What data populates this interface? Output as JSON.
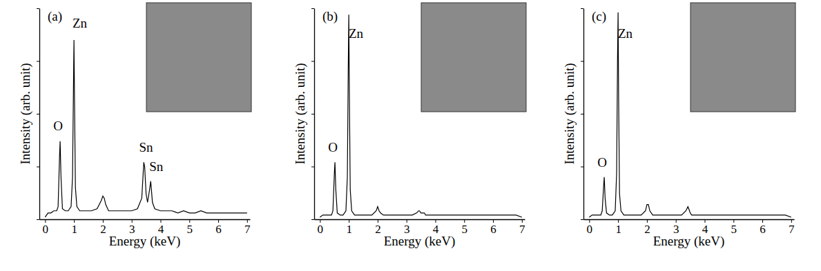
{
  "chart_data": [
    {
      "type": "line",
      "title": "(a)",
      "x_label": "Energy (keV)",
      "y_label": "Intensity (arb. unit)",
      "color": "#000000",
      "tick_labels": "x",
      "xlim": [
        -0.2,
        7.1
      ],
      "xticks": [
        0,
        1,
        2,
        3,
        4,
        5,
        6,
        7
      ],
      "ylim": [
        0,
        100
      ],
      "yticks": [
        0,
        25,
        50,
        75,
        100
      ],
      "x": [
        0,
        0.1,
        0.2,
        0.3,
        0.4,
        0.45,
        0.5,
        0.52,
        0.55,
        0.6,
        0.7,
        0.8,
        0.9,
        0.95,
        0.98,
        1.0,
        1.02,
        1.05,
        1.1,
        1.2,
        1.4,
        1.6,
        1.8,
        1.95,
        2.0,
        2.05,
        2.1,
        2.2,
        2.4,
        2.6,
        2.8,
        3.0,
        3.2,
        3.35,
        3.42,
        3.45,
        3.5,
        3.55,
        3.62,
        3.66,
        3.72,
        3.8,
        4.0,
        4.2,
        4.4,
        4.6,
        4.8,
        5.0,
        5.2,
        5.4,
        5.6,
        5.8,
        6.0,
        6.2,
        6.4,
        6.6,
        6.8,
        7.0
      ],
      "values": [
        1,
        3,
        3,
        4,
        4,
        6,
        30,
        37,
        20,
        5,
        4,
        4,
        6,
        20,
        60,
        85,
        55,
        15,
        6,
        4,
        4,
        4,
        5,
        9,
        11,
        10,
        7,
        4,
        4,
        4,
        4,
        4,
        5,
        10,
        27,
        25,
        12,
        8,
        14,
        18,
        8,
        5,
        4,
        4,
        4,
        3,
        4,
        3,
        3,
        4,
        3,
        3,
        3,
        3,
        3,
        3,
        3,
        3
      ],
      "annotations": [
        {
          "text": "O",
          "x": 0.45,
          "y": 42
        },
        {
          "text": "Zn",
          "x": 1.2,
          "y": 91
        },
        {
          "text": "Sn",
          "x": 3.5,
          "y": 32
        },
        {
          "text": "Sn",
          "x": 3.85,
          "y": 23
        }
      ]
    },
    {
      "type": "line",
      "title": "(b)",
      "x_label": "Energy (keV)",
      "y_label": "Intensity (arb. unit)",
      "color": "#000000",
      "tick_labels": "x",
      "xlim": [
        -0.2,
        7.1
      ],
      "xticks": [
        0,
        1,
        2,
        3,
        4,
        5,
        6,
        7
      ],
      "ylim": [
        0,
        100
      ],
      "yticks": [
        0,
        25,
        50,
        75,
        100
      ],
      "x": [
        0,
        0.1,
        0.2,
        0.3,
        0.4,
        0.45,
        0.5,
        0.52,
        0.55,
        0.6,
        0.7,
        0.8,
        0.9,
        0.95,
        0.98,
        1.0,
        1.02,
        1.05,
        1.1,
        1.2,
        1.4,
        1.6,
        1.8,
        1.95,
        2.0,
        2.05,
        2.1,
        2.2,
        2.4,
        2.6,
        2.8,
        3.0,
        3.2,
        3.35,
        3.42,
        3.45,
        3.5,
        3.55,
        3.62,
        3.66,
        3.72,
        3.8,
        4.0,
        4.2,
        4.4,
        4.6,
        4.8,
        5.0,
        5.2,
        5.4,
        5.6,
        5.8,
        6.0,
        6.2,
        6.4,
        6.6,
        6.8,
        7.0
      ],
      "values": [
        1,
        2,
        2,
        2,
        2,
        4,
        22,
        27,
        14,
        3,
        2,
        2,
        4,
        20,
        70,
        97,
        60,
        14,
        4,
        2,
        2,
        2,
        2,
        4,
        6,
        4,
        3,
        2,
        2,
        2,
        2,
        2,
        2,
        3,
        4,
        4,
        3,
        3,
        3,
        2,
        2,
        2,
        2,
        2,
        2,
        2,
        2,
        2,
        2,
        2,
        2,
        2,
        2,
        2,
        2,
        2,
        2,
        1
      ],
      "annotations": [
        {
          "text": "O",
          "x": 0.45,
          "y": 32
        },
        {
          "text": "Zn",
          "x": 1.25,
          "y": 86
        }
      ]
    },
    {
      "type": "line",
      "title": "(c)",
      "x_label": "Energy (keV)",
      "y_label": "Intensity (arb. unit)",
      "color": "#000000",
      "tick_labels": "x",
      "xlim": [
        -0.2,
        7.1
      ],
      "xticks": [
        0,
        1,
        2,
        3,
        4,
        5,
        6,
        7
      ],
      "ylim": [
        0,
        100
      ],
      "yticks": [
        0,
        25,
        50,
        75,
        100
      ],
      "x": [
        0,
        0.1,
        0.2,
        0.3,
        0.4,
        0.45,
        0.5,
        0.52,
        0.55,
        0.6,
        0.7,
        0.8,
        0.9,
        0.95,
        0.98,
        1.0,
        1.02,
        1.05,
        1.1,
        1.2,
        1.4,
        1.6,
        1.8,
        1.95,
        2.0,
        2.05,
        2.1,
        2.2,
        2.4,
        2.6,
        2.8,
        3.0,
        3.2,
        3.35,
        3.42,
        3.45,
        3.5,
        3.55,
        3.62,
        3.66,
        3.72,
        3.8,
        4.0,
        4.2,
        4.4,
        4.6,
        4.8,
        5.0,
        5.2,
        5.4,
        5.6,
        5.8,
        6.0,
        6.2,
        6.4,
        6.6,
        6.8,
        7.0
      ],
      "values": [
        1,
        2,
        2,
        2,
        2,
        4,
        16,
        20,
        10,
        3,
        2,
        2,
        4,
        22,
        75,
        98,
        55,
        12,
        4,
        2,
        2,
        2,
        2,
        4,
        7,
        7,
        4,
        2,
        2,
        2,
        2,
        2,
        2,
        4,
        6,
        5,
        3,
        2,
        2,
        2,
        2,
        2,
        2,
        2,
        2,
        2,
        2,
        2,
        2,
        2,
        2,
        2,
        2,
        2,
        2,
        2,
        2,
        1
      ],
      "annotations": [
        {
          "text": "O",
          "x": 0.45,
          "y": 25
        },
        {
          "text": "Zn",
          "x": 1.25,
          "y": 86
        }
      ]
    }
  ]
}
